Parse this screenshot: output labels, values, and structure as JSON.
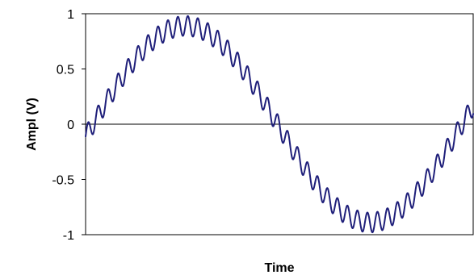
{
  "chart_data": {
    "type": "line",
    "title": "",
    "xlabel": "Time",
    "ylabel": "Ampl (V)",
    "ylim": [
      -1,
      1
    ],
    "yticks": [
      1,
      0.5,
      0,
      -0.5,
      -1
    ],
    "ytick_labels": [
      "1",
      "0.5",
      "0",
      "-0.5",
      "-1"
    ],
    "x_tick_labels": [],
    "grid": false,
    "legend": "none",
    "series": [
      {
        "signal": "sine with small high-frequency ripple",
        "fundamental_cycles": 1.05,
        "fundamental_amplitude": 0.89,
        "start_phase_cycles": -0.02,
        "ripple_amplitude": 0.09,
        "ripple_periods_per_cycle": 37,
        "samples": 1400,
        "color": "#1f1f7a"
      }
    ],
    "zero_line_color": "#000000",
    "axis_color": "#000000",
    "plot_area_border": "#000000"
  }
}
